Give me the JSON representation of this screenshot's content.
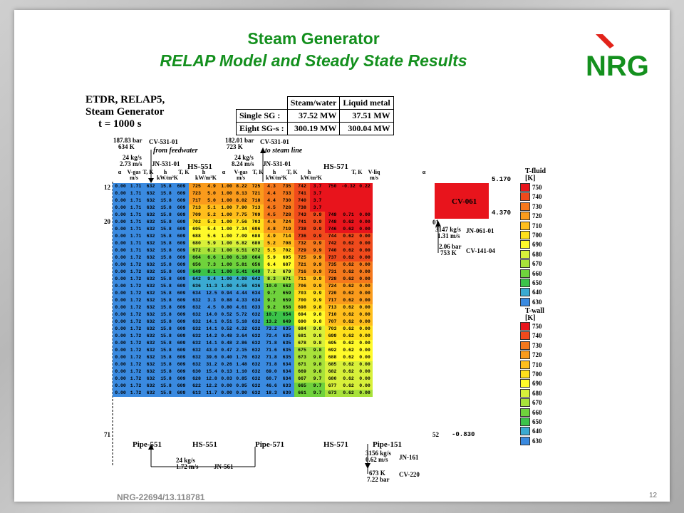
{
  "slide": {
    "title_line1": "Steam Generator",
    "title_line2": "RELAP Model and Steady State Results",
    "footer_id": "NRG-22694/13.118781",
    "page_number": "12",
    "logo_text": "NRG",
    "accent_color": "#14901e",
    "logo_red": "#e2231a"
  },
  "figure": {
    "title": [
      "ETDR, RELAP5,",
      "Steam Generator",
      "t =   1000 s"
    ],
    "summary": {
      "col1": "Steam/water",
      "col2": "Liquid metal",
      "rows": [
        {
          "label": "Single SG :",
          "sw": "37.52 MW",
          "lm": "37.51 MW"
        },
        {
          "label": "Eight SG-s :",
          "sw": "300.19 MW",
          "lm": "300.04 MW"
        }
      ]
    },
    "inlet": {
      "pressure": "187.83 bar",
      "temp": "634 K",
      "cv": "CV-531-01",
      "flow": "24 kg/s",
      "vel": "2.73 m/s",
      "jn": "JN-531-01",
      "label": "from feedwater"
    },
    "outlet": {
      "pressure": "182.01 bar",
      "temp": "723 K",
      "cv": "CV-531-01",
      "flow": "24 kg/s",
      "vel": "8.24 m/s",
      "jn": "JN-531-01",
      "label": "to steam line"
    },
    "hs_top": [
      "HS-551",
      "HS-571"
    ],
    "headers": [
      "α",
      "V-gas\nm/s",
      "T, K",
      "h\nkW/m²K",
      "T, K",
      "h\nkW/m²K",
      "α",
      "V-gas\nm/s",
      "T, K",
      "h\nkW/m²K",
      "T, K",
      "h\nkW/m²K",
      "T, K",
      "V-liq\nm/s",
      "α"
    ],
    "row_markers": [
      "12",
      "20",
      "71"
    ],
    "right_marks": [
      "5.170",
      "4.370",
      "01",
      "52",
      "-0.830"
    ],
    "cv061": "CV-061",
    "jn061": {
      "flow": "3147 kg/s",
      "vel": "1.31 m/s",
      "name": "JN-061-01"
    },
    "cv141": {
      "pressure": "2.06 bar",
      "temp": "753 K",
      "name": "CV-141-04"
    },
    "bottom_labels": [
      "Pipe-551",
      "HS-551",
      "Pipe-571",
      "HS-571",
      "Pipe-151"
    ],
    "jn561": {
      "flow": "24 kg/s",
      "vel": "1.72 m/s",
      "name": "JN-561"
    },
    "jn161": {
      "flow": "3156 kg/s",
      "vel": "0.62 m/s",
      "name": "JN-161"
    },
    "cv220": {
      "temp": "673 K",
      "pressure": "7.22 bar",
      "name": "CV-220"
    },
    "legend_fluid": {
      "title": [
        "T-fluid",
        "[K]"
      ],
      "values": [
        "750",
        "740",
        "730",
        "720",
        "710",
        "700",
        "690",
        "680",
        "670",
        "660",
        "650",
        "640",
        "630"
      ]
    },
    "legend_wall": {
      "title": [
        "T-wall",
        "[K]"
      ],
      "values": [
        "750",
        "740",
        "730",
        "720",
        "710",
        "700",
        "690",
        "680",
        "670",
        "660",
        "650",
        "640",
        "630"
      ]
    },
    "legend_colors": [
      "#e8141c",
      "#f04a1c",
      "#f5781c",
      "#fa9b1c",
      "#ffbe1c",
      "#ffe01c",
      "#fffa2a",
      "#d8f03a",
      "#a8e23a",
      "#6fd23c",
      "#3cc44a",
      "#3aaad2",
      "#3a8ae0"
    ],
    "rows": [
      [
        "0.00",
        "1.71",
        "632",
        "15.8",
        "609",
        "725",
        "4.9",
        "1.00",
        "8.22",
        "725",
        "4.3",
        "735",
        "742",
        "3.7",
        "750",
        "-0.32",
        "0.22"
      ],
      [
        "0.00",
        "1.71",
        "632",
        "15.8",
        "609",
        "723",
        "5.0",
        "1.00",
        "8.13",
        "721",
        "4.4",
        "733",
        "741",
        "3.7",
        "",
        "",
        ""
      ],
      [
        "0.00",
        "1.71",
        "632",
        "15.8",
        "609",
        "717",
        "5.0",
        "1.00",
        "8.02",
        "718",
        "4.4",
        "730",
        "740",
        "3.7",
        "",
        "",
        ""
      ],
      [
        "0.00",
        "1.71",
        "632",
        "15.8",
        "609",
        "713",
        "5.1",
        "1.00",
        "7.90",
        "713",
        "4.5",
        "728",
        "738",
        "3.7",
        "",
        "",
        ""
      ],
      [
        "0.00",
        "1.71",
        "632",
        "15.8",
        "609",
        "709",
        "5.2",
        "1.00",
        "7.75",
        "709",
        "4.5",
        "728",
        "743",
        "9.9",
        "749",
        "0.71",
        "0.00"
      ],
      [
        "0.00",
        "1.71",
        "632",
        "15.8",
        "609",
        "702",
        "5.3",
        "1.00",
        "7.56",
        "703",
        "4.6",
        "724",
        "741",
        "9.9",
        "748",
        "0.62",
        "0.00"
      ],
      [
        "0.00",
        "1.71",
        "632",
        "15.8",
        "609",
        "695",
        "5.4",
        "1.00",
        "7.34",
        "696",
        "4.8",
        "719",
        "738",
        "9.9",
        "746",
        "0.62",
        "0.00"
      ],
      [
        "0.00",
        "1.71",
        "632",
        "15.8",
        "609",
        "688",
        "5.6",
        "1.00",
        "7.09",
        "688",
        "4.9",
        "714",
        "736",
        "9.9",
        "744",
        "0.62",
        "0.00"
      ],
      [
        "0.00",
        "1.71",
        "632",
        "15.8",
        "609",
        "680",
        "5.9",
        "1.00",
        "6.82",
        "680",
        "5.2",
        "708",
        "732",
        "9.9",
        "742",
        "0.62",
        "0.00"
      ],
      [
        "0.00",
        "1.71",
        "632",
        "15.8",
        "609",
        "672",
        "6.2",
        "1.00",
        "6.51",
        "672",
        "5.5",
        "702",
        "729",
        "9.9",
        "740",
        "0.62",
        "0.00"
      ],
      [
        "0.00",
        "1.72",
        "632",
        "15.8",
        "609",
        "664",
        "6.6",
        "1.00",
        "6.18",
        "664",
        "5.9",
        "695",
        "725",
        "9.9",
        "737",
        "0.62",
        "0.00"
      ],
      [
        "0.00",
        "1.72",
        "632",
        "15.8",
        "609",
        "656",
        "7.3",
        "1.00",
        "5.81",
        "656",
        "6.4",
        "687",
        "721",
        "9.9",
        "735",
        "0.62",
        "0.00"
      ],
      [
        "0.00",
        "1.72",
        "632",
        "15.8",
        "609",
        "649",
        "8.1",
        "1.00",
        "5.41",
        "649",
        "7.2",
        "679",
        "716",
        "9.9",
        "731",
        "0.62",
        "0.00"
      ],
      [
        "0.00",
        "1.72",
        "632",
        "15.8",
        "609",
        "642",
        "9.4",
        "1.00",
        "4.98",
        "642",
        "8.3",
        "671",
        "711",
        "9.9",
        "728",
        "0.62",
        "0.00"
      ],
      [
        "0.00",
        "1.72",
        "632",
        "15.8",
        "609",
        "636",
        "11.3",
        "1.00",
        "4.56",
        "636",
        "10.0",
        "662",
        "706",
        "9.9",
        "724",
        "0.62",
        "0.00"
      ],
      [
        "0.00",
        "1.72",
        "632",
        "15.8",
        "609",
        "634",
        "12.5",
        "0.94",
        "4.44",
        "634",
        "9.7",
        "659",
        "703",
        "9.9",
        "720",
        "0.62",
        "0.00"
      ],
      [
        "0.00",
        "1.72",
        "632",
        "15.8",
        "609",
        "632",
        "3.3",
        "0.88",
        "4.33",
        "634",
        "9.2",
        "659",
        "700",
        "9.9",
        "717",
        "0.62",
        "0.00"
      ],
      [
        "0.00",
        "1.72",
        "632",
        "15.8",
        "609",
        "632",
        "4.5",
        "0.80",
        "4.61",
        "633",
        "9.2",
        "658",
        "698",
        "9.8",
        "713",
        "0.62",
        "0.00"
      ],
      [
        "0.00",
        "1.72",
        "632",
        "15.8",
        "609",
        "632",
        "14.0",
        "0.52",
        "5.72",
        "632",
        "10.7",
        "654",
        "694",
        "9.8",
        "710",
        "0.62",
        "0.00"
      ],
      [
        "0.00",
        "1.72",
        "632",
        "15.8",
        "609",
        "632",
        "14.1",
        "0.51",
        "5.18",
        "632",
        "13.2",
        "649",
        "690",
        "9.8",
        "707",
        "0.62",
        "0.00"
      ],
      [
        "0.00",
        "1.72",
        "632",
        "15.8",
        "609",
        "632",
        "14.1",
        "0.52",
        "4.32",
        "632",
        "73.2",
        "635",
        "684",
        "9.8",
        "703",
        "0.62",
        "0.00"
      ],
      [
        "0.00",
        "1.72",
        "632",
        "15.8",
        "609",
        "632",
        "14.2",
        "0.48",
        "3.64",
        "632",
        "72.4",
        "635",
        "681",
        "9.8",
        "699",
        "0.62",
        "0.00"
      ],
      [
        "0.00",
        "1.72",
        "632",
        "15.8",
        "609",
        "632",
        "14.1",
        "0.48",
        "2.86",
        "632",
        "71.8",
        "635",
        "678",
        "9.8",
        "695",
        "0.62",
        "0.00"
      ],
      [
        "0.00",
        "1.72",
        "632",
        "15.8",
        "609",
        "632",
        "43.0",
        "0.47",
        "2.15",
        "632",
        "71.6",
        "635",
        "675",
        "9.8",
        "692",
        "0.62",
        "0.00"
      ],
      [
        "0.00",
        "1.72",
        "632",
        "15.8",
        "609",
        "632",
        "39.6",
        "0.40",
        "1.76",
        "632",
        "71.8",
        "635",
        "673",
        "9.8",
        "688",
        "0.62",
        "0.00"
      ],
      [
        "0.00",
        "1.72",
        "632",
        "15.8",
        "609",
        "632",
        "31.2",
        "0.26",
        "1.48",
        "632",
        "71.8",
        "634",
        "671",
        "9.8",
        "685",
        "0.62",
        "0.00"
      ],
      [
        "0.00",
        "1.72",
        "632",
        "15.8",
        "609",
        "630",
        "15.4",
        "0.13",
        "1.10",
        "632",
        "69.0",
        "634",
        "669",
        "9.8",
        "682",
        "0.62",
        "0.00"
      ],
      [
        "0.00",
        "1.72",
        "632",
        "15.8",
        "609",
        "628",
        "12.8",
        "0.03",
        "0.85",
        "632",
        "60.7",
        "634",
        "667",
        "9.7",
        "680",
        "0.62",
        "0.00"
      ],
      [
        "0.00",
        "1.72",
        "632",
        "15.8",
        "609",
        "622",
        "12.2",
        "0.00",
        "0.95",
        "632",
        "46.6",
        "633",
        "665",
        "9.7",
        "677",
        "0.62",
        "0.00"
      ],
      [
        "0.00",
        "1.72",
        "632",
        "15.8",
        "609",
        "613",
        "11.7",
        "0.00",
        "0.90",
        "632",
        "18.3",
        "630",
        "661",
        "9.7",
        "673",
        "0.62",
        "0.00"
      ]
    ]
  }
}
